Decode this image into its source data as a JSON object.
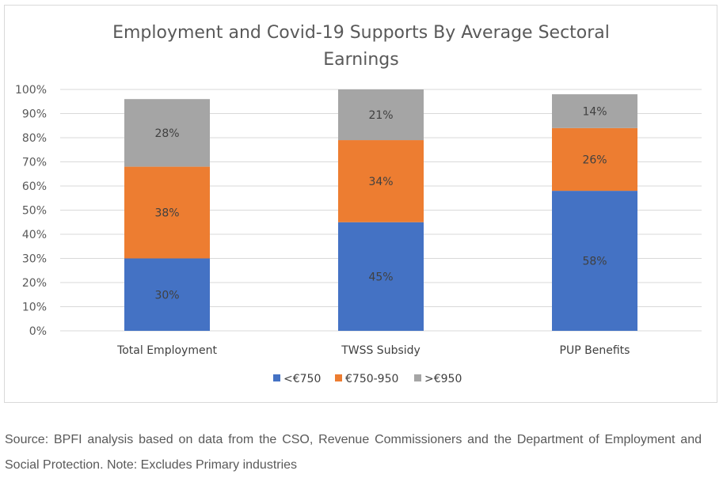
{
  "chart_data": {
    "type": "bar",
    "stacked": true,
    "title": "Employment and Covid-19 Supports By Average Sectoral Earnings",
    "title_lines": [
      "Employment and Covid-19 Supports By Average Sectoral",
      "Earnings"
    ],
    "categories": [
      "Total Employment",
      "TWSS Subsidy",
      "PUP Benefits"
    ],
    "series": [
      {
        "name": "<€750",
        "values": [
          30,
          45,
          58
        ],
        "labels": [
          "30%",
          "45%",
          "58%"
        ],
        "color": "#4472c4"
      },
      {
        "name": "€750-950",
        "values": [
          38,
          34,
          26
        ],
        "labels": [
          "38%",
          "34%",
          "26%"
        ],
        "color": "#ed7d31"
      },
      {
        "name": ">€950",
        "values": [
          28,
          21,
          14
        ],
        "labels": [
          "28%",
          "21%",
          "14%"
        ],
        "color": "#a5a5a5"
      }
    ],
    "bar_totals": [
      95,
      99,
      98
    ],
    "ylim": [
      0,
      100
    ],
    "yticks": [
      "0%",
      "10%",
      "20%",
      "30%",
      "40%",
      "50%",
      "60%",
      "70%",
      "80%",
      "90%",
      "100%"
    ],
    "grid": true,
    "legend_position": "bottom",
    "gridline_color": "#d9d9d9"
  },
  "caption": "Source: BPFI analysis based on data from the CSO, Revenue Commissioners and the Department of Employment and Social Protection. Note: Excludes Primary industries"
}
